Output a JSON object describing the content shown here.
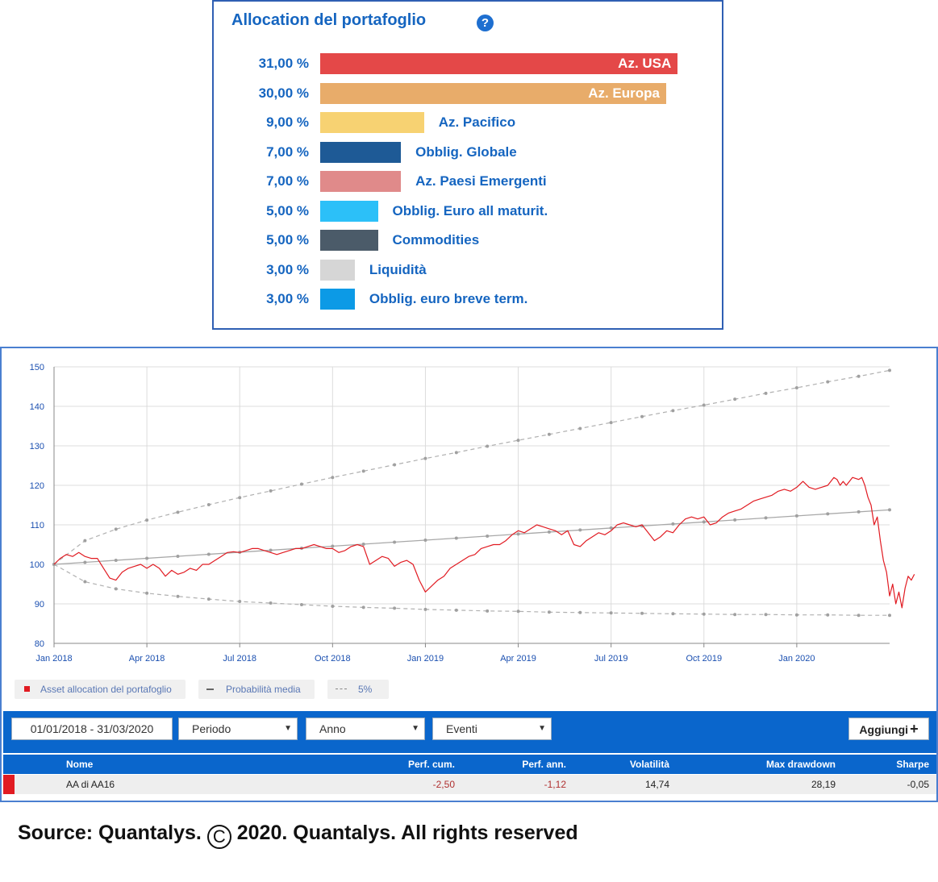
{
  "allocation": {
    "title": "Allocation del portafoglio",
    "help_icon": "question-circle-icon",
    "items": [
      {
        "percent": "31,00 %",
        "value": 31,
        "label": "Az. USA",
        "color": "#e44848",
        "label_inside": true
      },
      {
        "percent": "30,00 %",
        "value": 30,
        "label": "Az. Europa",
        "color": "#e8ac6a",
        "label_inside": true
      },
      {
        "percent": "9,00 %",
        "value": 9,
        "label": "Az. Pacifico",
        "color": "#f7d272",
        "label_inside": false
      },
      {
        "percent": "7,00 %",
        "value": 7,
        "label": "Obblig. Globale",
        "color": "#1e5a96",
        "label_inside": false
      },
      {
        "percent": "7,00 %",
        "value": 7,
        "label": "Az. Paesi Emergenti",
        "color": "#e08a8a",
        "label_inside": false
      },
      {
        "percent": "5,00 %",
        "value": 5,
        "label": "Obblig. Euro all maturit.",
        "color": "#2cc0f8",
        "label_inside": false
      },
      {
        "percent": "5,00 %",
        "value": 5,
        "label": "Commodities",
        "color": "#4b5b69",
        "label_inside": false
      },
      {
        "percent": "3,00 %",
        "value": 3,
        "label": "Liquidità",
        "color": "#d6d6d6",
        "label_inside": false
      },
      {
        "percent": "3,00 %",
        "value": 3,
        "label": "Obblig. euro breve term.",
        "color": "#0c9ae6",
        "label_inside": false
      }
    ]
  },
  "chart_data": {
    "type": "line",
    "ylim": [
      80,
      150
    ],
    "yticks": [
      80,
      90,
      100,
      110,
      120,
      130,
      140,
      150
    ],
    "xtick_labels": [
      "Jan 2018",
      "Apr 2018",
      "Jul 2018",
      "Oct 2018",
      "Jan 2019",
      "Apr 2019",
      "Jul 2019",
      "Oct 2019",
      "Jan 2020"
    ],
    "x_range_months": [
      0,
      27
    ],
    "series": [
      {
        "name": "Asset allocation del portafoglio",
        "color": "#e11b22",
        "points": [
          [
            0,
            100
          ],
          [
            0.2,
            101.5
          ],
          [
            0.4,
            102.5
          ],
          [
            0.6,
            102
          ],
          [
            0.8,
            103
          ],
          [
            1.0,
            102
          ],
          [
            1.2,
            101.5
          ],
          [
            1.4,
            101.5
          ],
          [
            1.6,
            99
          ],
          [
            1.8,
            96.5
          ],
          [
            2.0,
            96
          ],
          [
            2.2,
            98
          ],
          [
            2.4,
            99
          ],
          [
            2.6,
            99.5
          ],
          [
            2.8,
            100
          ],
          [
            3.0,
            99
          ],
          [
            3.2,
            100
          ],
          [
            3.4,
            99
          ],
          [
            3.6,
            97
          ],
          [
            3.8,
            98.5
          ],
          [
            4.0,
            97.5
          ],
          [
            4.2,
            98
          ],
          [
            4.4,
            99
          ],
          [
            4.6,
            98.5
          ],
          [
            4.8,
            100
          ],
          [
            5.0,
            100
          ],
          [
            5.2,
            101
          ],
          [
            5.4,
            102
          ],
          [
            5.6,
            103
          ],
          [
            5.8,
            103.2
          ],
          [
            6.0,
            103
          ],
          [
            6.2,
            103.5
          ],
          [
            6.4,
            104
          ],
          [
            6.6,
            104
          ],
          [
            6.8,
            103.5
          ],
          [
            7.0,
            103
          ],
          [
            7.2,
            102.5
          ],
          [
            7.4,
            103
          ],
          [
            7.6,
            103.5
          ],
          [
            7.8,
            104
          ],
          [
            8.0,
            104
          ],
          [
            8.2,
            104.5
          ],
          [
            8.4,
            105
          ],
          [
            8.6,
            104.5
          ],
          [
            8.8,
            104
          ],
          [
            9.0,
            104
          ],
          [
            9.2,
            103
          ],
          [
            9.4,
            103.5
          ],
          [
            9.6,
            104.5
          ],
          [
            9.8,
            105
          ],
          [
            10.0,
            104.5
          ],
          [
            10.2,
            100
          ],
          [
            10.4,
            101
          ],
          [
            10.6,
            102
          ],
          [
            10.8,
            101.5
          ],
          [
            11.0,
            99.5
          ],
          [
            11.2,
            100.5
          ],
          [
            11.4,
            101
          ],
          [
            11.6,
            100
          ],
          [
            11.8,
            96
          ],
          [
            12.0,
            93
          ],
          [
            12.2,
            94.5
          ],
          [
            12.4,
            96
          ],
          [
            12.6,
            97
          ],
          [
            12.8,
            99
          ],
          [
            13.0,
            100
          ],
          [
            13.2,
            101
          ],
          [
            13.4,
            102
          ],
          [
            13.6,
            102.5
          ],
          [
            13.8,
            104
          ],
          [
            14.0,
            104.5
          ],
          [
            14.2,
            105
          ],
          [
            14.4,
            105
          ],
          [
            14.6,
            106
          ],
          [
            14.8,
            107.5
          ],
          [
            15.0,
            108.5
          ],
          [
            15.2,
            108
          ],
          [
            15.4,
            109
          ],
          [
            15.6,
            110
          ],
          [
            15.8,
            109.5
          ],
          [
            16.0,
            109
          ],
          [
            16.2,
            108.5
          ],
          [
            16.4,
            107.5
          ],
          [
            16.6,
            108.5
          ],
          [
            16.8,
            105
          ],
          [
            17.0,
            104.5
          ],
          [
            17.2,
            106
          ],
          [
            17.4,
            107
          ],
          [
            17.6,
            108
          ],
          [
            17.8,
            107.5
          ],
          [
            18.0,
            108.5
          ],
          [
            18.2,
            110
          ],
          [
            18.4,
            110.5
          ],
          [
            18.6,
            110
          ],
          [
            18.8,
            109.5
          ],
          [
            19.0,
            110
          ],
          [
            19.2,
            108
          ],
          [
            19.4,
            106
          ],
          [
            19.6,
            107
          ],
          [
            19.8,
            108.5
          ],
          [
            20.0,
            108
          ],
          [
            20.2,
            110
          ],
          [
            20.4,
            111.5
          ],
          [
            20.6,
            112
          ],
          [
            20.8,
            111.5
          ],
          [
            21.0,
            112
          ],
          [
            21.2,
            110
          ],
          [
            21.4,
            110.5
          ],
          [
            21.6,
            112
          ],
          [
            21.8,
            113
          ],
          [
            22.0,
            113.5
          ],
          [
            22.2,
            114
          ],
          [
            22.4,
            115
          ],
          [
            22.6,
            116
          ],
          [
            22.8,
            116.5
          ],
          [
            23.0,
            117
          ],
          [
            23.2,
            117.5
          ],
          [
            23.4,
            118.5
          ],
          [
            23.6,
            119
          ],
          [
            23.8,
            118.5
          ],
          [
            24.0,
            119.5
          ],
          [
            24.2,
            121
          ],
          [
            24.4,
            119.5
          ],
          [
            24.6,
            119
          ],
          [
            24.8,
            119.5
          ],
          [
            25.0,
            120
          ],
          [
            25.2,
            122
          ],
          [
            25.3,
            121.5
          ],
          [
            25.4,
            120
          ],
          [
            25.5,
            121
          ],
          [
            25.6,
            120
          ],
          [
            25.8,
            122
          ],
          [
            26.0,
            121.5
          ],
          [
            26.1,
            122
          ],
          [
            26.2,
            120
          ],
          [
            26.3,
            117
          ],
          [
            26.4,
            115
          ],
          [
            26.5,
            110
          ],
          [
            26.6,
            112
          ],
          [
            26.7,
            106
          ],
          [
            26.8,
            101
          ],
          [
            26.9,
            98
          ],
          [
            27.0,
            92
          ],
          [
            27.1,
            95
          ],
          [
            27.2,
            90
          ],
          [
            27.3,
            93
          ],
          [
            27.4,
            89
          ],
          [
            27.5,
            94
          ],
          [
            27.6,
            97
          ],
          [
            27.7,
            96
          ],
          [
            27.8,
            97.5
          ]
        ]
      },
      {
        "name": "Probabilità media",
        "color": "#a8a8a8",
        "points": [
          [
            0,
            100
          ],
          [
            27,
            113.8
          ]
        ]
      },
      {
        "name": "5%",
        "color": "#b0b0b0",
        "upper": [
          [
            0,
            100
          ],
          [
            1,
            106
          ],
          [
            2,
            108.9
          ],
          [
            3,
            111.2
          ],
          [
            4,
            113.2
          ],
          [
            5,
            115.1
          ],
          [
            6,
            116.9
          ],
          [
            7,
            118.6
          ],
          [
            8,
            120.3
          ],
          [
            9,
            122
          ],
          [
            10,
            123.6
          ],
          [
            11,
            125.2
          ],
          [
            12,
            126.8
          ],
          [
            13,
            128.3
          ],
          [
            14,
            129.9
          ],
          [
            15,
            131.4
          ],
          [
            16,
            132.9
          ],
          [
            17,
            134.4
          ],
          [
            18,
            135.9
          ],
          [
            19,
            137.4
          ],
          [
            20,
            138.9
          ],
          [
            21,
            140.3
          ],
          [
            22,
            141.8
          ],
          [
            23,
            143.3
          ],
          [
            24,
            144.7
          ],
          [
            25,
            146.2
          ],
          [
            26,
            147.6
          ],
          [
            27,
            149.1
          ]
        ],
        "lower": [
          [
            0,
            100
          ],
          [
            1,
            95.6
          ],
          [
            2,
            93.8
          ],
          [
            3,
            92.7
          ],
          [
            4,
            91.9
          ],
          [
            5,
            91.2
          ],
          [
            6,
            90.6
          ],
          [
            7,
            90.2
          ],
          [
            8,
            89.8
          ],
          [
            9,
            89.4
          ],
          [
            10,
            89.1
          ],
          [
            11,
            88.9
          ],
          [
            12,
            88.6
          ],
          [
            13,
            88.4
          ],
          [
            14,
            88.2
          ],
          [
            15,
            88.1
          ],
          [
            16,
            87.9
          ],
          [
            17,
            87.8
          ],
          [
            18,
            87.7
          ],
          [
            19,
            87.6
          ],
          [
            20,
            87.5
          ],
          [
            21,
            87.4
          ],
          [
            22,
            87.3
          ],
          [
            23,
            87.3
          ],
          [
            24,
            87.2
          ],
          [
            25,
            87.2
          ],
          [
            26,
            87.1
          ],
          [
            27,
            87.1
          ]
        ]
      }
    ],
    "legend": [
      "Asset allocation del portafoglio",
      "Probabilità media",
      "5%"
    ],
    "legend_placement": "bottom-left",
    "grid": true
  },
  "toolbar": {
    "date_range": "01/01/2018 - 31/03/2020",
    "periodo": "Periodo",
    "anno": "Anno",
    "eventi": "Eventi",
    "add_label": "Aggiungi",
    "add_icon": "plus-icon",
    "dropdown_icon": "chevron-down-icon"
  },
  "table": {
    "headers": {
      "nome": "Nome",
      "perf_cum": "Perf. cum.",
      "perf_ann": "Perf. ann.",
      "volatilita": "Volatilità",
      "max_drawdown": "Max drawdown",
      "sharpe": "Sharpe"
    },
    "row": {
      "nome": "AA di AA16",
      "perf_cum": "-2,50",
      "perf_ann": "-1,12",
      "volatilita": "14,74",
      "max_drawdown": "28,19",
      "sharpe": "-0,05",
      "marker_color": "#e11b22",
      "negative_color": "#b03030"
    }
  },
  "source": {
    "text": "Source: Quantalys. ",
    "copyright_symbol": "C",
    "text2": " 2020. Quantalys. All rights reserved"
  }
}
